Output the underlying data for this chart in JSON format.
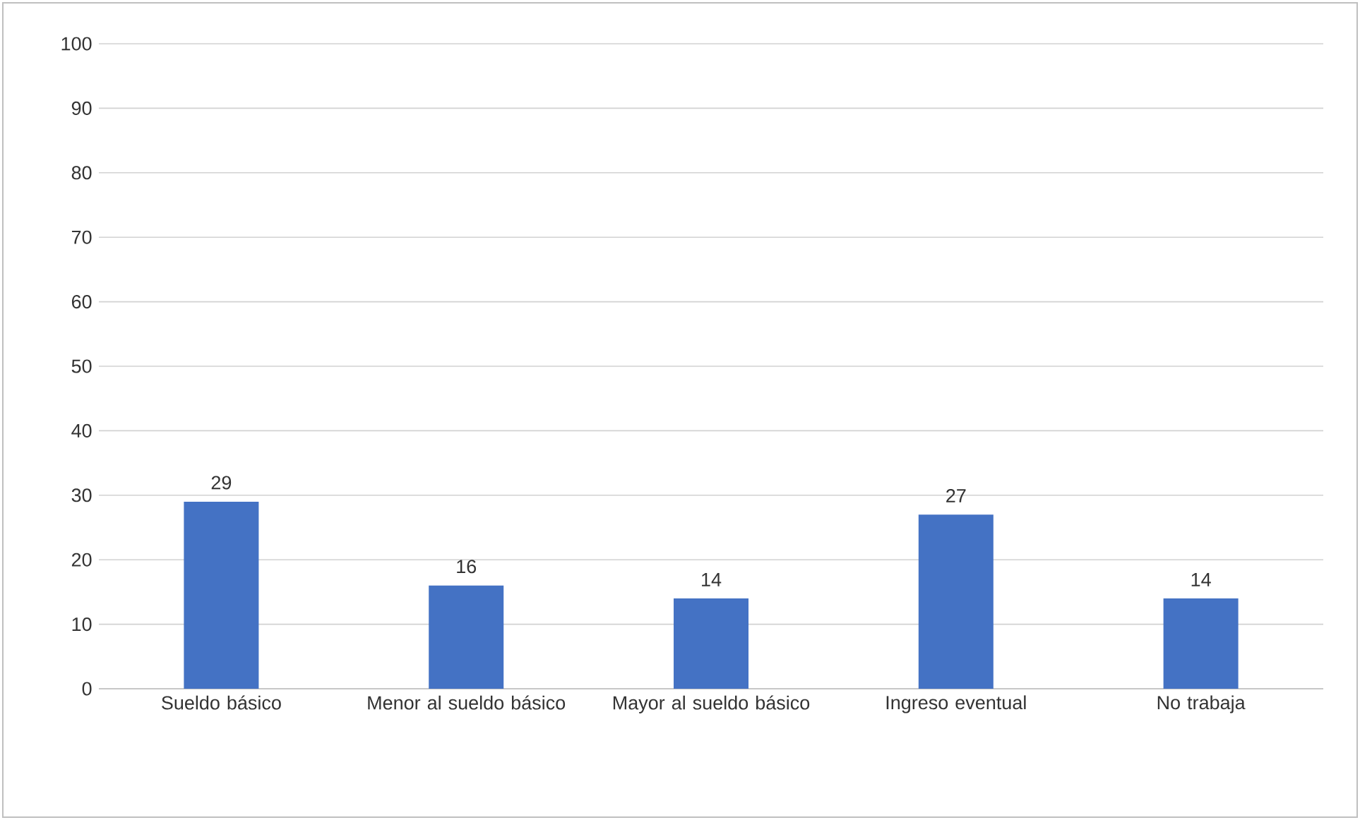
{
  "chart_data": {
    "type": "bar",
    "categories": [
      "Sueldo básico",
      "Menor al sueldo básico",
      "Mayor al sueldo básico",
      "Ingreso eventual",
      "No trabaja"
    ],
    "values": [
      29,
      16,
      14,
      27,
      14
    ],
    "color": "#4472c4",
    "ylim": [
      0,
      100
    ],
    "yticks": [
      0,
      10,
      20,
      30,
      40,
      50,
      60,
      70,
      80,
      90,
      100
    ],
    "grid": "y",
    "data_labels": true
  }
}
